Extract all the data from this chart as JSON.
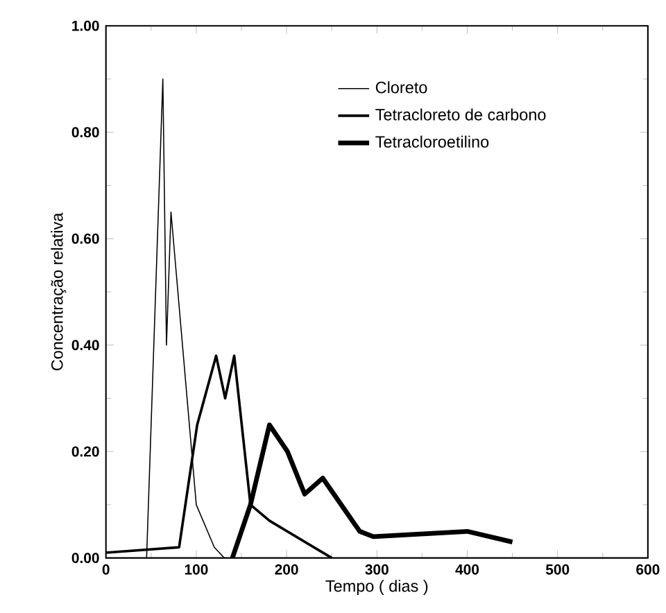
{
  "chart_data": {
    "type": "line",
    "xlabel": "Tempo ( dias )",
    "ylabel": "Concentração relativa",
    "xlim": [
      0,
      600
    ],
    "ylim": [
      0,
      1.0
    ],
    "xticks": [
      0,
      100,
      200,
      300,
      400,
      500,
      600
    ],
    "yticks": [
      {
        "value": 0,
        "label": "0.00"
      },
      {
        "value": 0.2,
        "label": "0.20"
      },
      {
        "value": 0.4,
        "label": "0.40"
      },
      {
        "value": 0.6,
        "label": "0.60"
      },
      {
        "value": 0.8,
        "label": "0.80"
      },
      {
        "value": 1.0,
        "label": "1.00"
      }
    ],
    "grid": false,
    "legend": "top right",
    "marker": "none",
    "line_style": "solid",
    "series": [
      {
        "name": "Cloreto",
        "color": "#000000",
        "x": [
          45,
          63,
          67,
          72,
          100,
          120,
          131
        ],
        "values": [
          0,
          0.9,
          0.4,
          0.65,
          0.1,
          0.02,
          0
        ]
      },
      {
        "name": "Tetracloreto de carbono",
        "color": "#000000",
        "x": [
          0,
          81,
          101,
          122,
          132,
          142,
          160,
          181,
          250
        ],
        "values": [
          0.01,
          0.02,
          0.25,
          0.38,
          0.3,
          0.38,
          0.1,
          0.07,
          0
        ]
      },
      {
        "name": "Tetracloroetilino",
        "color": "#000000",
        "x": [
          140,
          160,
          181,
          201,
          220,
          240,
          281,
          296,
          400,
          450
        ],
        "values": [
          0,
          0.1,
          0.25,
          0.2,
          0.12,
          0.15,
          0.05,
          0.04,
          0.05,
          0.03
        ]
      }
    ]
  }
}
